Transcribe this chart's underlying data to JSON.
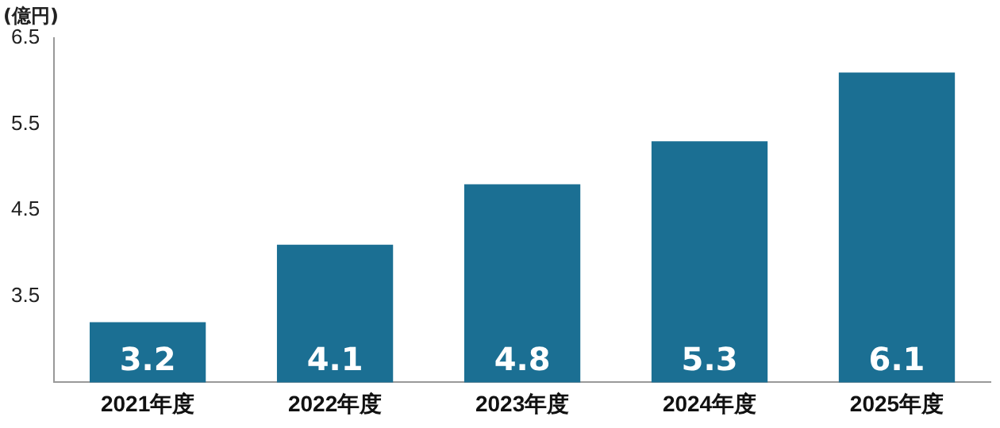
{
  "chart_data": {
    "type": "bar",
    "ylabel": "(億円)",
    "categories": [
      "2021年度",
      "2022年度",
      "2023年度",
      "2024年度",
      "2025年度"
    ],
    "values": [
      3.2,
      4.1,
      4.8,
      5.3,
      6.1
    ],
    "color": "#1b6f93",
    "ylim": [
      2.5,
      6.5
    ],
    "yticks": [
      3.5,
      4.5,
      5.5,
      6.5
    ],
    "grid": false,
    "data_labels": true,
    "legend": false
  }
}
